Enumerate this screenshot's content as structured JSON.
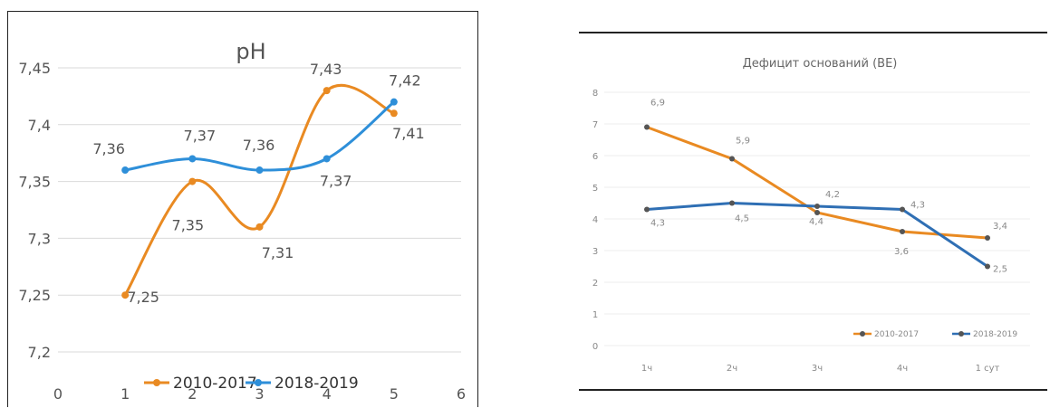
{
  "chart_data": [
    {
      "type": "line",
      "title": "pH",
      "x": [
        1,
        2,
        3,
        4,
        5
      ],
      "xlim": [
        0,
        6
      ],
      "xticks": [
        "0",
        "1",
        "2",
        "3",
        "4",
        "5",
        "6"
      ],
      "ylim": [
        7.2,
        7.45
      ],
      "yticks": [
        "7,2",
        "7,25",
        "7,3",
        "7,35",
        "7,4",
        "7,45"
      ],
      "ystep": 0.05,
      "grid": true,
      "smooth": true,
      "legend_position": "bottom",
      "series": [
        {
          "name": "2010-2017",
          "color": "#E98A22",
          "values": [
            7.25,
            7.35,
            7.31,
            7.43,
            7.41
          ],
          "labels": [
            "7,25",
            "7,35",
            "7,31",
            "7,43",
            "7,41"
          ]
        },
        {
          "name": "2018-2019",
          "color": "#2E8FD9",
          "values": [
            7.36,
            7.37,
            7.36,
            7.37,
            7.42
          ],
          "labels": [
            "7,36",
            "7,37",
            "7,36",
            "7,37",
            "7,42"
          ]
        }
      ]
    },
    {
      "type": "line",
      "title": "Дефицит оснований (BE)",
      "categories": [
        "1ч",
        "2ч",
        "3ч",
        "4ч",
        "1 сут"
      ],
      "ylim": [
        0,
        8
      ],
      "yticks": [
        "0",
        "1",
        "2",
        "3",
        "4",
        "5",
        "6",
        "7",
        "8"
      ],
      "ystep": 1,
      "grid": true,
      "smooth": false,
      "legend_position": "bottom-right",
      "series": [
        {
          "name": "2010-2017",
          "color": "#E98A22",
          "values": [
            6.9,
            5.9,
            4.2,
            3.6,
            3.4
          ],
          "labels": [
            "6,9",
            "5,9",
            "4,2",
            "3,6",
            "3,4"
          ]
        },
        {
          "name": "2018-2019",
          "color": "#2F6FB4",
          "values": [
            4.3,
            4.5,
            4.4,
            4.3,
            2.5
          ],
          "labels": [
            "4,3",
            "4,5",
            "4,4",
            "4,3",
            "2,5"
          ]
        }
      ]
    }
  ]
}
